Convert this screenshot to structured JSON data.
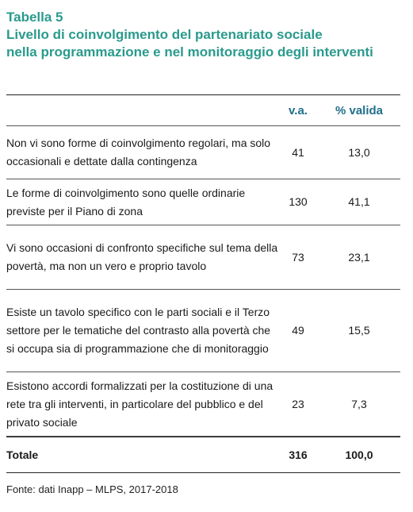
{
  "heading": {
    "label": "Tabella 5",
    "title_line1": "Livello di coinvolgimento del partenariato sociale",
    "title_line2": "nella programmazione e nel monitoraggio degli interventi"
  },
  "table": {
    "header": {
      "description": "",
      "va": "v.a.",
      "pct": "% valida"
    },
    "rows": [
      {
        "description": "Non vi sono forme di coinvolgimento regolari, ma solo occasionali e dettate dalla contingenza",
        "va": "41",
        "pct": "13,0"
      },
      {
        "description": "Le forme di coinvolgimento sono quelle ordinarie previste per il Piano di zona",
        "va": "130",
        "pct": "41,1"
      },
      {
        "description": "Vi sono occasioni di confronto specifiche sul tema della povertà, ma non un vero e proprio tavolo",
        "va": "73",
        "pct": "23,1"
      },
      {
        "description": "Esiste un tavolo specifico con le parti sociali e il Terzo settore per le tematiche del contrasto alla povertà che si occupa sia di programmazione che di monitoraggio",
        "va": "49",
        "pct": "15,5"
      },
      {
        "description": "Esistono accordi formalizzati per la costituzione di una rete tra gli interventi, in particolare del pubblico e del privato sociale",
        "va": "23",
        "pct": "7,3"
      }
    ],
    "total": {
      "description": "Totale",
      "va": "316",
      "pct": "100,0"
    }
  },
  "source": "Fonte: dati Inapp – MLPS, 2017-2018",
  "colors": {
    "heading": "#2a9a8c",
    "column_header": "#1f6f8b"
  }
}
